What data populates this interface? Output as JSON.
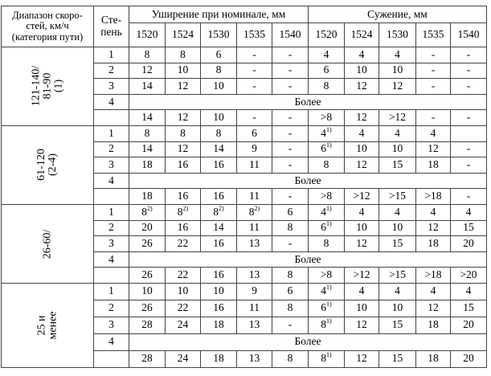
{
  "header": {
    "range_col": "Диапазон скоро-\nстей, км/ч\n(категория пути)",
    "degree_col": "Сте-\nпень",
    "widening_title": "Уширение при номинале,  мм",
    "narrowing_title": "Сужение, мм",
    "gauges": [
      "1520",
      "1524",
      "1530",
      "1535",
      "1540"
    ]
  },
  "more_label": "Более",
  "groups": [
    {
      "range": "121-140/\n81-90\n(1)",
      "rows": [
        {
          "deg": "1",
          "w": [
            "8",
            "8",
            "6",
            "-",
            "-"
          ],
          "n": [
            "4",
            "4",
            "4",
            "-",
            "-"
          ]
        },
        {
          "deg": "2",
          "w": [
            "12",
            "10",
            "8",
            "-",
            "-"
          ],
          "n": [
            "6",
            "10",
            "10",
            "-",
            "-"
          ]
        },
        {
          "deg": "3",
          "w": [
            "14",
            "12",
            "10",
            "-",
            "-"
          ],
          "n": [
            "8",
            "12",
            "12",
            "-",
            "-"
          ]
        }
      ],
      "deg4": "4",
      "more": {
        "w": [
          "14",
          "12",
          "10",
          "-",
          "-"
        ],
        "n": [
          ">8",
          "12",
          ">12",
          "-",
          "-"
        ]
      }
    },
    {
      "range": "61-120\n(2-4)",
      "rows": [
        {
          "deg": "1",
          "w": [
            "8",
            "8",
            "8",
            "6",
            "-"
          ],
          "n": [
            "4",
            "4",
            "4",
            "4",
            ""
          ],
          "nsup": [
            "1)",
            "",
            "",
            "",
            ""
          ]
        },
        {
          "deg": "2",
          "w": [
            "14",
            "12",
            "14",
            "9",
            "-"
          ],
          "n": [
            "6",
            "10",
            "10",
            "12",
            "-"
          ],
          "nsup": [
            "1)",
            "",
            "",
            "",
            ""
          ]
        },
        {
          "deg": "3",
          "w": [
            "18",
            "16",
            "16",
            "11",
            "-"
          ],
          "n": [
            "8",
            "12",
            "15",
            "18",
            "-"
          ]
        }
      ],
      "deg4": "4",
      "more": {
        "w": [
          "18",
          "16",
          "16",
          "11",
          "-"
        ],
        "n": [
          ">8",
          ">12",
          ">15",
          ">18",
          "-"
        ]
      }
    },
    {
      "range": "26-60/",
      "rows": [
        {
          "deg": "1",
          "w": [
            "8",
            "8",
            "8",
            "8",
            "6"
          ],
          "wsup": [
            "2)",
            "2)",
            "2)",
            "2)",
            ""
          ],
          "n": [
            "4",
            "4",
            "4",
            "4",
            "4"
          ],
          "nsup": [
            "1)",
            "",
            "",
            "",
            ""
          ]
        },
        {
          "deg": "2",
          "w": [
            "20",
            "16",
            "14",
            "11",
            "8"
          ],
          "n": [
            "6",
            "10",
            "10",
            "12",
            "15"
          ],
          "nsup": [
            "1)",
            "",
            "",
            "",
            ""
          ]
        },
        {
          "deg": "3",
          "w": [
            "26",
            "22",
            "16",
            "13",
            "-"
          ],
          "n": [
            "8",
            "12",
            "15",
            "18",
            "20"
          ]
        }
      ],
      "deg4": "4",
      "more": {
        "w": [
          "26",
          "22",
          "16",
          "13",
          "8"
        ],
        "n": [
          ">8",
          ">12",
          ">15",
          ">18",
          ">20"
        ]
      }
    },
    {
      "range": "25 и\nменее",
      "rows": [
        {
          "deg": "1",
          "w": [
            "10",
            "10",
            "10",
            "9",
            "6"
          ],
          "n": [
            "4",
            "4",
            "4",
            "4",
            "4"
          ],
          "nsup": [
            "1)",
            "",
            "",
            "",
            ""
          ]
        },
        {
          "deg": "2",
          "w": [
            "26",
            "22",
            "16",
            "11",
            "8"
          ],
          "n": [
            "6",
            "10",
            "10",
            "12",
            "15"
          ],
          "nsup": [
            "1)",
            "",
            "",
            "",
            ""
          ]
        },
        {
          "deg": "3",
          "w": [
            "28",
            "24",
            "18",
            "13",
            "-"
          ],
          "n": [
            "8",
            "12",
            "15",
            "18",
            "20"
          ],
          "nsup": [
            "1)",
            "",
            "",
            "",
            ""
          ]
        }
      ],
      "deg4": "4",
      "more": {
        "w": [
          "28",
          "24",
          "18",
          "13",
          "8"
        ],
        "n": [
          "8",
          "12",
          "15",
          "18",
          "20"
        ],
        "nsup": [
          "1)",
          "",
          "",
          "",
          ""
        ]
      }
    }
  ]
}
